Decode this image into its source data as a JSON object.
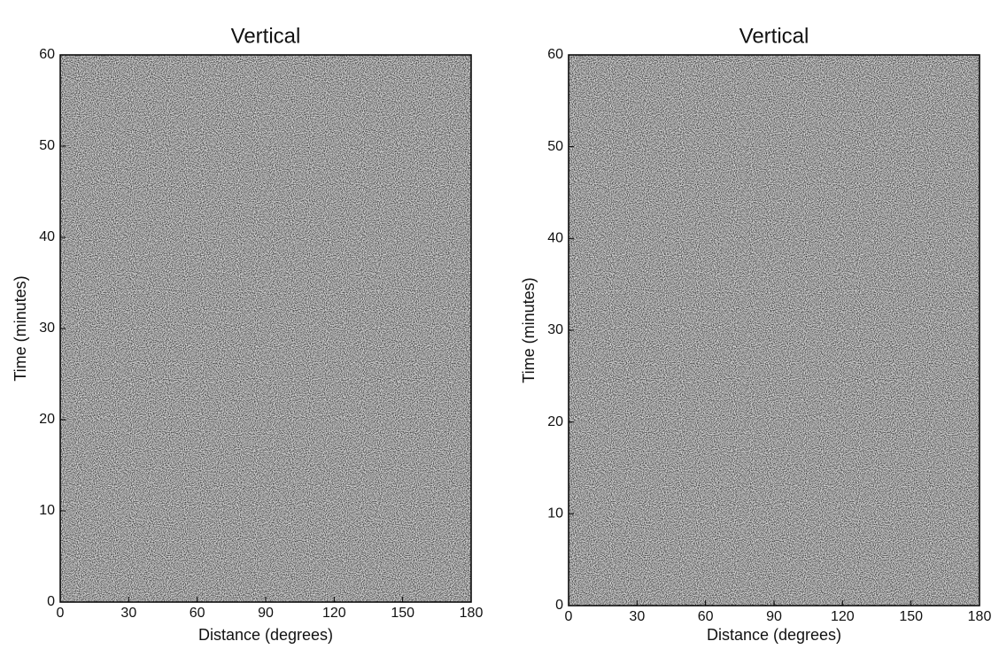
{
  "chart_data": [
    {
      "type": "image",
      "title": "Vertical",
      "xlabel": "Distance (degrees)",
      "ylabel": "Time (minutes)",
      "xlim": [
        0,
        180
      ],
      "ylim": [
        0,
        60
      ],
      "xticks": [
        0,
        30,
        60,
        90,
        120,
        150,
        180
      ],
      "yticks": [
        0,
        10,
        20,
        30,
        40,
        50,
        60
      ]
    },
    {
      "type": "image",
      "title": "Vertical",
      "xlabel": "Distance (degrees)",
      "ylabel": "Time (minutes)",
      "xlim": [
        0,
        180
      ],
      "ylim": [
        0,
        60
      ],
      "xticks": [
        0,
        30,
        60,
        90,
        120,
        150,
        180
      ],
      "yticks": [
        0,
        10,
        20,
        30,
        40,
        50,
        60
      ]
    }
  ]
}
